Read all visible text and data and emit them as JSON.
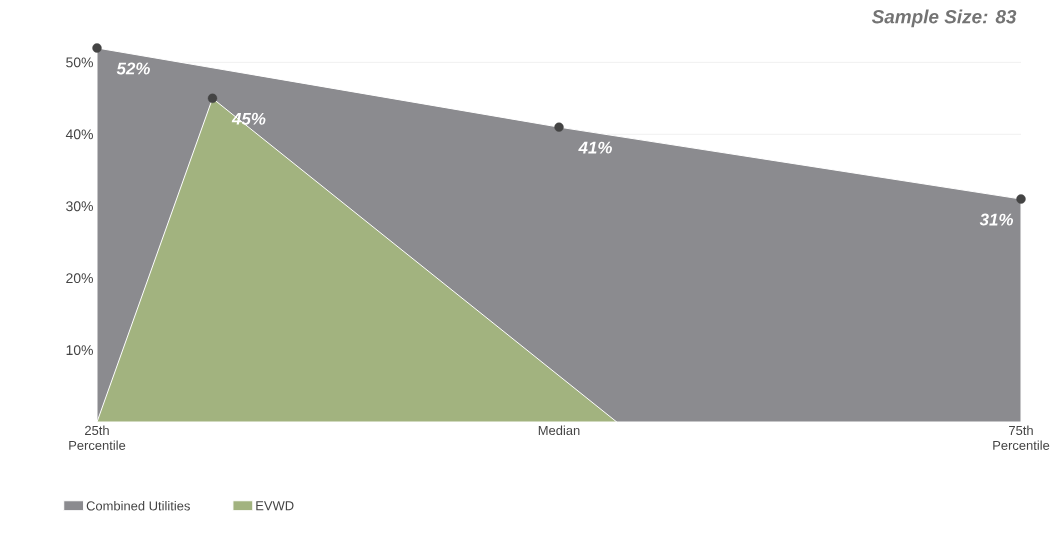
{
  "chart_data": {
    "type": "area",
    "title": "Sample Size: 83",
    "categories": [
      "25th Percentile",
      null,
      null,
      null,
      null,
      null,
      null,
      null,
      "Median",
      null,
      null,
      null,
      null,
      null,
      null,
      null,
      "75th Percentile"
    ],
    "ylim": [
      0,
      52
    ],
    "yticks": [
      {
        "value": 10,
        "label": "10%"
      },
      {
        "value": 20,
        "label": "20%"
      },
      {
        "value": 30,
        "label": "30%"
      },
      {
        "value": 40,
        "label": "40%"
      },
      {
        "value": 50,
        "label": "50%"
      }
    ],
    "grid": "y",
    "legend": "bottom left",
    "series": [
      {
        "name": "Combined Utilities",
        "color": "#8b8b8f",
        "values": [
          52,
          null,
          null,
          null,
          null,
          null,
          null,
          null,
          41,
          null,
          null,
          null,
          null,
          null,
          null,
          null,
          31
        ]
      },
      {
        "name": "EVWD",
        "color": "#a2b37f",
        "values": [
          0,
          null,
          45,
          null,
          null,
          null,
          null,
          null,
          null,
          0,
          null,
          null,
          null,
          null,
          null,
          null,
          null
        ]
      },
      {
        "type": "scatter",
        "marker": "circle",
        "color": "#444444",
        "values": [
          52,
          null,
          45,
          null,
          null,
          null,
          null,
          null,
          41,
          null,
          null,
          null,
          null,
          null,
          null,
          null,
          31
        ],
        "value_labels": [
          "52%",
          null,
          "45%",
          null,
          null,
          null,
          null,
          null,
          "41%",
          null,
          null,
          null,
          null,
          null,
          null,
          null,
          "31%"
        ]
      }
    ]
  }
}
